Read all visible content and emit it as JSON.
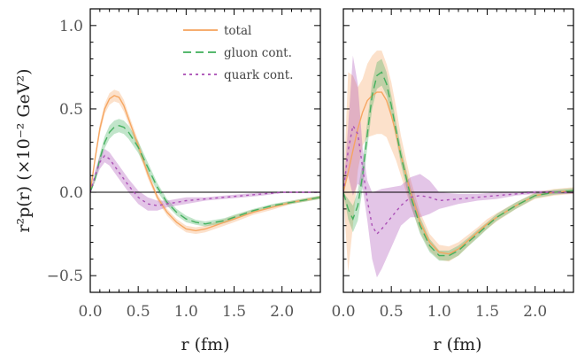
{
  "chart_data": {
    "type": "line",
    "ylabel": "r²p(r)  (×10⁻² GeV²)",
    "legend": {
      "placement": "top-right (left panel)",
      "entries": [
        {
          "key": "total",
          "label": "total",
          "color": "#f5a35c",
          "style": "solid"
        },
        {
          "key": "gluon",
          "label": "gluon cont.",
          "color": "#3fae5a",
          "style": "dashed"
        },
        {
          "key": "quark",
          "label": "quark cont.",
          "color": "#a84ab3",
          "style": "dotted"
        }
      ]
    },
    "panels": [
      {
        "xlabel": "r  (fm)",
        "xlim": [
          0,
          2.4
        ],
        "ylim": [
          -0.6,
          1.1
        ],
        "xticks": [
          "0.0",
          "0.5",
          "1.0",
          "1.5",
          "2.0"
        ],
        "yticks": [
          "−0.5",
          "0.0",
          "0.5",
          "1.0"
        ],
        "series": [
          {
            "key": "total",
            "x": [
              0,
              0.05,
              0.1,
              0.15,
              0.2,
              0.25,
              0.3,
              0.35,
              0.4,
              0.5,
              0.6,
              0.7,
              0.8,
              0.9,
              1.0,
              1.1,
              1.2,
              1.3,
              1.4,
              1.5,
              1.7,
              1.9,
              2.1,
              2.4
            ],
            "y": [
              0,
              0.2,
              0.38,
              0.5,
              0.56,
              0.58,
              0.57,
              0.52,
              0.44,
              0.28,
              0.11,
              -0.03,
              -0.12,
              -0.18,
              -0.22,
              -0.23,
              -0.22,
              -0.2,
              -0.18,
              -0.16,
              -0.12,
              -0.09,
              -0.06,
              -0.03
            ],
            "err": [
              0,
              0.02,
              0.03,
              0.03,
              0.035,
              0.035,
              0.035,
              0.035,
              0.03,
              0.03,
              0.025,
              0.02,
              0.02,
              0.02,
              0.02,
              0.02,
              0.02,
              0.02,
              0.02,
              0.02,
              0.015,
              0.015,
              0.01,
              0.01
            ]
          },
          {
            "key": "gluon",
            "x": [
              0,
              0.05,
              0.1,
              0.15,
              0.2,
              0.25,
              0.3,
              0.35,
              0.4,
              0.5,
              0.6,
              0.7,
              0.8,
              0.9,
              1.0,
              1.1,
              1.2,
              1.3,
              1.4,
              1.5,
              1.7,
              1.9,
              2.1,
              2.4
            ],
            "y": [
              0,
              0.08,
              0.2,
              0.3,
              0.36,
              0.39,
              0.4,
              0.39,
              0.36,
              0.27,
              0.15,
              0.03,
              -0.06,
              -0.12,
              -0.16,
              -0.18,
              -0.19,
              -0.18,
              -0.17,
              -0.15,
              -0.11,
              -0.08,
              -0.06,
              -0.03
            ],
            "err": [
              0,
              0.02,
              0.03,
              0.035,
              0.04,
              0.04,
              0.04,
              0.04,
              0.04,
              0.035,
              0.03,
              0.025,
              0.02,
              0.02,
              0.02,
              0.015,
              0.015,
              0.015,
              0.015,
              0.015,
              0.01,
              0.01,
              0.01,
              0.01
            ]
          },
          {
            "key": "quark",
            "x": [
              0,
              0.05,
              0.1,
              0.15,
              0.2,
              0.25,
              0.3,
              0.4,
              0.5,
              0.6,
              0.7,
              0.8,
              0.9,
              1.0,
              1.2,
              1.4,
              1.6,
              1.8,
              2.0,
              2.4
            ],
            "y": [
              0,
              0.1,
              0.18,
              0.22,
              0.2,
              0.16,
              0.12,
              0.04,
              -0.03,
              -0.07,
              -0.08,
              -0.07,
              -0.06,
              -0.05,
              -0.04,
              -0.03,
              -0.02,
              -0.01,
              0,
              0
            ],
            "err": [
              0,
              0.03,
              0.04,
              0.04,
              0.04,
              0.04,
              0.04,
              0.04,
              0.04,
              0.04,
              0.03,
              0.02,
              0.02,
              0.02,
              0.01,
              0.01,
              0.01,
              0.01,
              0.005,
              0.005
            ]
          }
        ]
      },
      {
        "xlabel": "r  (fm)",
        "xlim": [
          0,
          2.4
        ],
        "ylim": [
          -0.6,
          1.1
        ],
        "xticks": [
          "0.0",
          "0.5",
          "1.0",
          "1.5",
          "2.0"
        ],
        "yticks": [],
        "series": [
          {
            "key": "total",
            "x": [
              0,
              0.05,
              0.1,
              0.15,
              0.2,
              0.25,
              0.3,
              0.35,
              0.4,
              0.45,
              0.5,
              0.55,
              0.6,
              0.7,
              0.8,
              0.9,
              1.0,
              1.1,
              1.2,
              1.3,
              1.4,
              1.5,
              1.6,
              1.8,
              2.0,
              2.2,
              2.4
            ],
            "y": [
              0,
              0.12,
              0.25,
              0.38,
              0.48,
              0.55,
              0.58,
              0.6,
              0.6,
              0.55,
              0.46,
              0.35,
              0.22,
              0.0,
              -0.18,
              -0.3,
              -0.36,
              -0.37,
              -0.34,
              -0.29,
              -0.24,
              -0.19,
              -0.15,
              -0.08,
              -0.02,
              0.0,
              0.01
            ],
            "err": [
              0,
              0.6,
              0.45,
              0.25,
              0.2,
              0.22,
              0.24,
              0.25,
              0.25,
              0.22,
              0.2,
              0.16,
              0.12,
              0.08,
              0.06,
              0.05,
              0.045,
              0.045,
              0.04,
              0.035,
              0.03,
              0.03,
              0.025,
              0.02,
              0.02,
              0.02,
              0.02
            ]
          },
          {
            "key": "gluon",
            "x": [
              0,
              0.05,
              0.1,
              0.15,
              0.2,
              0.25,
              0.3,
              0.35,
              0.4,
              0.45,
              0.5,
              0.55,
              0.6,
              0.7,
              0.8,
              0.9,
              1.0,
              1.1,
              1.2,
              1.3,
              1.4,
              1.5,
              1.6,
              1.8,
              2.0,
              2.2,
              2.4
            ],
            "y": [
              0,
              -0.1,
              -0.16,
              -0.08,
              0.1,
              0.35,
              0.58,
              0.7,
              0.72,
              0.65,
              0.52,
              0.37,
              0.22,
              -0.02,
              -0.2,
              -0.32,
              -0.38,
              -0.38,
              -0.35,
              -0.3,
              -0.25,
              -0.2,
              -0.15,
              -0.08,
              -0.02,
              0.0,
              0.01
            ],
            "err": [
              0,
              0.06,
              0.08,
              0.09,
              0.08,
              0.08,
              0.08,
              0.08,
              0.08,
              0.07,
              0.06,
              0.05,
              0.05,
              0.05,
              0.05,
              0.04,
              0.03,
              0.03,
              0.03,
              0.025,
              0.025,
              0.02,
              0.02,
              0.02,
              0.015,
              0.015,
              0.015
            ]
          },
          {
            "key": "quark",
            "x": [
              0,
              0.05,
              0.1,
              0.15,
              0.2,
              0.25,
              0.3,
              0.35,
              0.4,
              0.5,
              0.6,
              0.7,
              0.8,
              0.9,
              1.0,
              1.2,
              1.4,
              1.6,
              1.8,
              2.0,
              2.4
            ],
            "y": [
              0,
              0.25,
              0.4,
              0.35,
              0.15,
              -0.05,
              -0.2,
              -0.25,
              -0.22,
              -0.15,
              -0.08,
              -0.03,
              -0.02,
              -0.03,
              -0.05,
              -0.04,
              -0.03,
              -0.02,
              -0.01,
              0,
              0
            ],
            "err": [
              0,
              0.15,
              0.42,
              0.3,
              0.12,
              0.12,
              0.2,
              0.26,
              0.24,
              0.18,
              0.12,
              0.12,
              0.13,
              0.1,
              0.05,
              0.03,
              0.02,
              0.02,
              0.01,
              0.01,
              0.01
            ]
          }
        ]
      }
    ]
  }
}
